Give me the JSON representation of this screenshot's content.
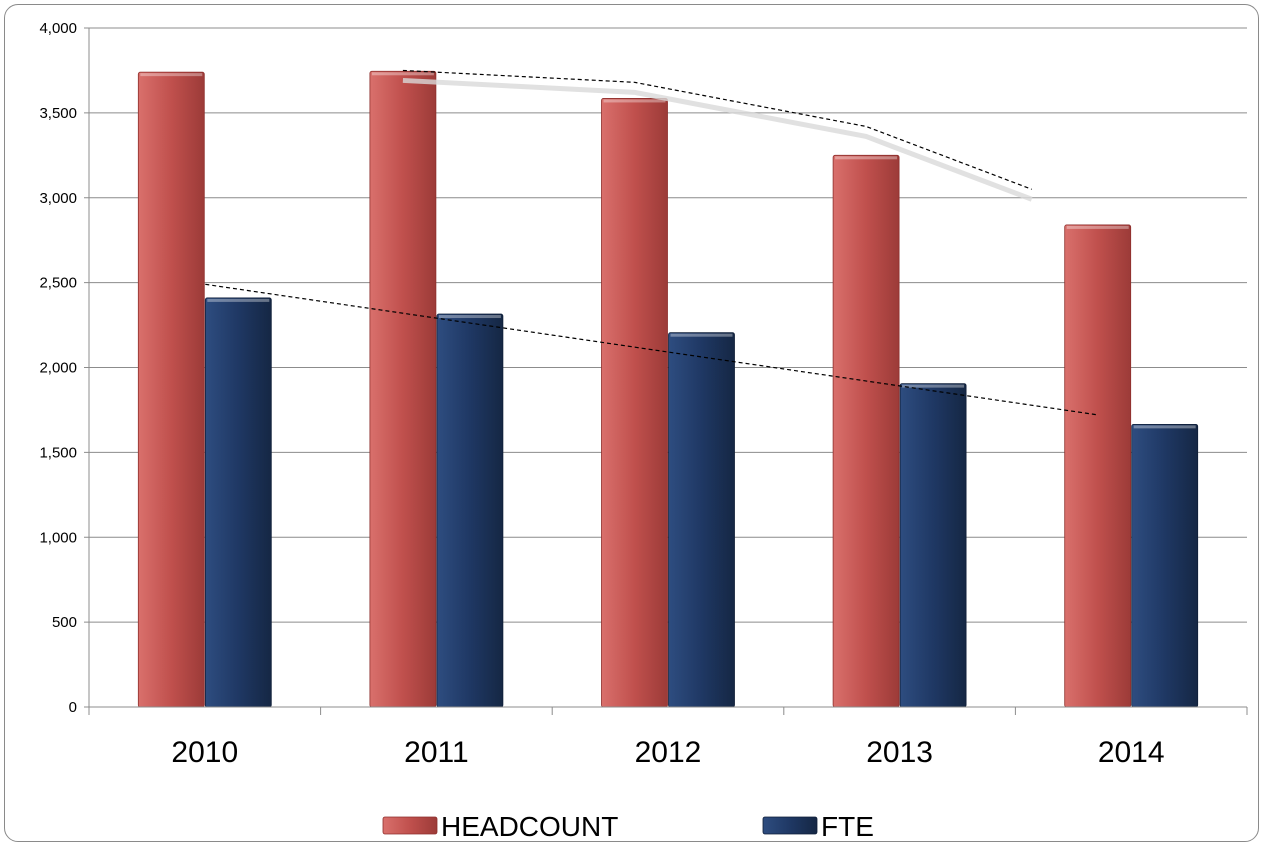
{
  "chart_data": {
    "type": "bar",
    "title": "",
    "xlabel": "",
    "ylabel": "",
    "categories": [
      "2010",
      "2011",
      "2012",
      "2013",
      "2014"
    ],
    "series": [
      {
        "name": "HEADCOUNT",
        "values": [
          3740,
          3745,
          3585,
          3250,
          2840
        ],
        "color": "#c0504d"
      },
      {
        "name": "FTE",
        "values": [
          2410,
          2315,
          2205,
          1905,
          1665
        ],
        "color": "#1f3864"
      }
    ],
    "trendlines": [
      {
        "series": "HEADCOUNT",
        "style": "dashed",
        "kind": "polynomial",
        "points": [
          [
            1,
            3750
          ],
          [
            2,
            3680
          ],
          [
            3,
            3420
          ],
          [
            4,
            3050
          ]
        ]
      },
      {
        "series": "FTE",
        "style": "dashed",
        "kind": "linear",
        "points": [
          [
            0,
            2490
          ],
          [
            4,
            1720
          ]
        ]
      }
    ],
    "ylim": [
      0,
      4000
    ],
    "yticks": [
      0,
      500,
      1000,
      1500,
      2000,
      2500,
      3000,
      3500,
      4000
    ],
    "ytick_labels": [
      "0",
      "500",
      "1,000",
      "1,500",
      "2,000",
      "2,500",
      "3,000",
      "3,500",
      "4,000"
    ],
    "grid": true,
    "legend_position": "bottom"
  }
}
